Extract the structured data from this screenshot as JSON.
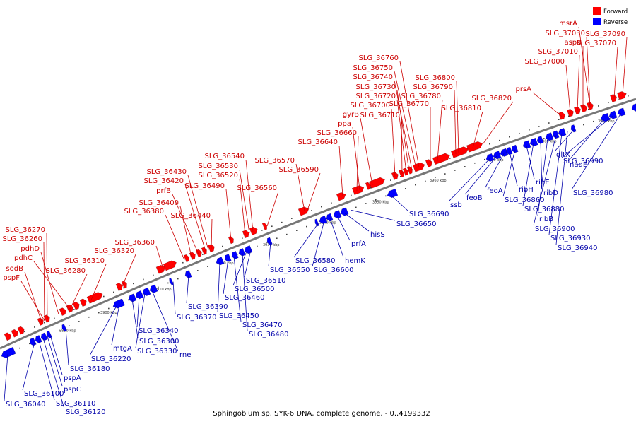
{
  "caption": "Sphingobium sp. SYK-6 DNA, complete genome. - 0..4199332",
  "legend": [
    {
      "label": "Forward",
      "color": "#ff0000"
    },
    {
      "label": "Reverse",
      "color": "#0000ff"
    }
  ],
  "colors": {
    "forward": "#ff0000",
    "reverse": "#0000ff",
    "backbone": "#777777",
    "forward_label": "#cc0000",
    "reverse_label": "#0000aa"
  },
  "tick_labels": [
    "3890 kbp",
    "3900 kbp",
    "3910 kbp",
    "3920 kbp",
    "3930 kbp",
    "3940 kbp",
    "3950 kbp",
    "3960 kbp",
    "3970 kbp",
    "3980 kbp",
    "3990 kbp"
  ],
  "forward_genes": [
    "SLG_36270",
    "SLG_36260",
    "pdhD",
    "pdhC",
    "sodB",
    "pspF",
    "SLG_36280",
    "SLG_36310",
    "SLG_36320",
    "SLG_36360",
    "SLG_36380",
    "SLG_36400",
    "prfB",
    "SLG_36420",
    "SLG_36430",
    "SLG_36440",
    "SLG_36490",
    "SLG_36520",
    "SLG_36530",
    "SLG_36540",
    "SLG_36560",
    "SLG_36570",
    "SLG_36590",
    "SLG_36640",
    "SLG_36660",
    "ppa",
    "gyrB",
    "SLG_36700",
    "SLG_36710",
    "SLG_36720",
    "SLG_36730",
    "SLG_36740",
    "SLG_36750",
    "SLG_36760",
    "SLG_36770",
    "SLG_36780",
    "SLG_36790",
    "SLG_36800",
    "SLG_36810",
    "SLG_36820",
    "prsA",
    "SLG_37000",
    "SLG_37010",
    "aspB",
    "SLG_37030",
    "msrA",
    "SLG_37070",
    "SLG_37090"
  ],
  "reverse_genes": [
    "SLG_36040",
    "SLG_36100",
    "SLG_36110",
    "SLG_36120",
    "pspC",
    "pspA",
    "SLG_36180",
    "SLG_36220",
    "mtgA",
    "SLG_36300",
    "SLG_36340",
    "SLG_36330",
    "rne",
    "SLG_36370",
    "SLG_36390",
    "SLG_36450",
    "SLG_36460",
    "SLG_36470",
    "SLG_36480",
    "SLG_36500",
    "SLG_36510",
    "SLG_36550",
    "SLG_36580",
    "SLG_36600",
    "hemK",
    "prfA",
    "hisS",
    "SLG_36650",
    "SLG_36690",
    "ssb",
    "feoB",
    "feoA",
    "ribH",
    "SLG_36860",
    "ribE",
    "SLG_36880",
    "ribD",
    "ribB",
    "SLG_36900",
    "SLG_36930",
    "SLG_36940",
    "gltX",
    "nadE",
    "SLG_36990",
    "SLG_36980"
  ]
}
